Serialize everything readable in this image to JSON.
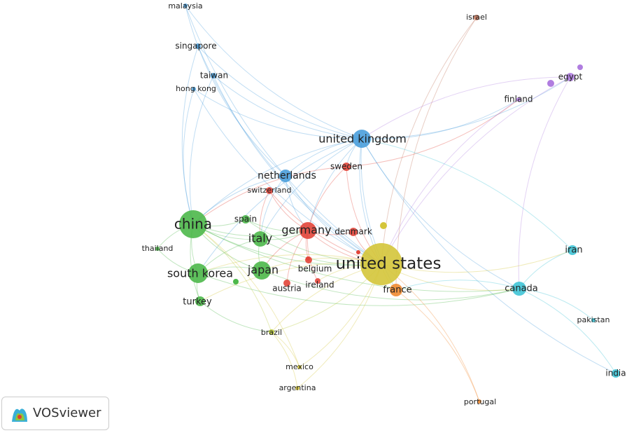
{
  "nodes": [
    {
      "label": "malaysia"
    },
    {
      "label": "singapore"
    },
    {
      "label": "taiwan"
    },
    {
      "label": "hong kong"
    },
    {
      "label": "united kingdom"
    },
    {
      "label": "netherlands"
    },
    {
      "label": "sweden"
    },
    {
      "label": "switzerland"
    },
    {
      "label": "israel"
    },
    {
      "label": "egypt"
    },
    {
      "label": "finland"
    },
    {
      "label": "china"
    },
    {
      "label": "spain"
    },
    {
      "label": "italy"
    },
    {
      "label": "thailand"
    },
    {
      "label": "germany"
    },
    {
      "label": "denmark"
    },
    {
      "label": "united states"
    },
    {
      "label": "japan"
    },
    {
      "label": "south korea"
    },
    {
      "label": "belgium"
    },
    {
      "label": "austria"
    },
    {
      "label": "ireland"
    },
    {
      "label": "france"
    },
    {
      "label": "turkey"
    },
    {
      "label": "iran"
    },
    {
      "label": "canada"
    },
    {
      "label": "pakistan"
    },
    {
      "label": "brazil"
    },
    {
      "label": "mexico"
    },
    {
      "label": "argentina"
    },
    {
      "label": "india"
    },
    {
      "label": "portugal"
    }
  ],
  "logo": {
    "text": "VOSviewer"
  }
}
